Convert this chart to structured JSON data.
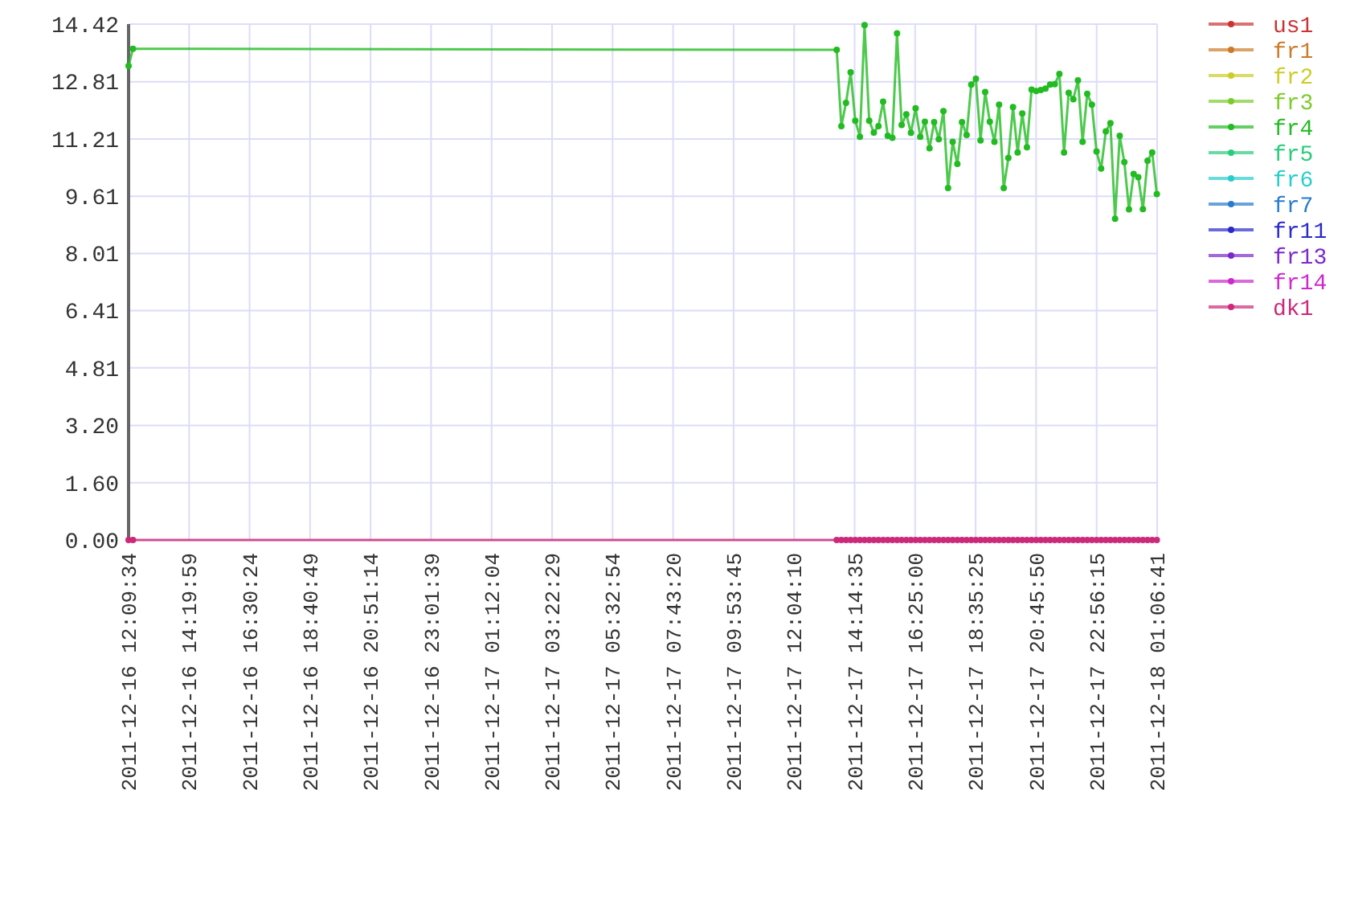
{
  "chart_data": {
    "type": "line",
    "x": [
      "2011-12-16T12:09:34",
      "2011-12-16T12:19",
      "2011-12-17T13:36",
      "2011-12-17T13:46",
      "2011-12-17T13:56",
      "2011-12-17T14:06",
      "2011-12-17T14:16",
      "2011-12-17T14:26",
      "2011-12-17T14:36",
      "2011-12-17T14:46",
      "2011-12-17T14:56",
      "2011-12-17T15:06",
      "2011-12-17T15:16",
      "2011-12-17T15:26",
      "2011-12-17T15:36",
      "2011-12-17T15:46",
      "2011-12-17T15:56",
      "2011-12-17T16:06",
      "2011-12-17T16:16",
      "2011-12-17T16:26",
      "2011-12-17T16:36",
      "2011-12-17T16:46",
      "2011-12-17T16:56",
      "2011-12-17T17:06",
      "2011-12-17T17:16",
      "2011-12-17T17:26",
      "2011-12-17T17:36",
      "2011-12-17T17:46",
      "2011-12-17T17:56",
      "2011-12-17T18:06",
      "2011-12-17T18:16",
      "2011-12-17T18:26",
      "2011-12-17T18:36",
      "2011-12-17T18:46",
      "2011-12-17T18:56",
      "2011-12-17T19:06",
      "2011-12-17T19:16",
      "2011-12-17T19:26",
      "2011-12-17T19:36",
      "2011-12-17T19:46",
      "2011-12-17T19:56",
      "2011-12-17T20:06",
      "2011-12-17T20:16",
      "2011-12-17T20:26",
      "2011-12-17T20:36",
      "2011-12-17T20:46",
      "2011-12-17T20:56",
      "2011-12-17T21:06",
      "2011-12-17T21:16",
      "2011-12-17T21:26",
      "2011-12-17T21:36",
      "2011-12-17T21:46",
      "2011-12-17T21:56",
      "2011-12-17T22:06",
      "2011-12-17T22:16",
      "2011-12-17T22:26",
      "2011-12-17T22:36",
      "2011-12-17T22:46",
      "2011-12-17T22:56",
      "2011-12-17T23:06",
      "2011-12-17T23:16",
      "2011-12-17T23:26",
      "2011-12-17T23:36",
      "2011-12-17T23:46",
      "2011-12-17T23:56",
      "2011-12-18T00:06",
      "2011-12-18T00:16",
      "2011-12-18T00:26",
      "2011-12-18T00:36",
      "2011-12-18T00:46",
      "2011-12-18T00:56",
      "2011-12-18T01:06"
    ],
    "xlim": [
      "2011-12-16T12:09:34",
      "2011-12-18T01:06:41"
    ],
    "xticks": [
      {
        "value": "2011-12-16T12:09:34",
        "label": "2011-12-16 12:09:34"
      },
      {
        "value": "2011-12-16T14:19:59",
        "label": "2011-12-16 14:19:59"
      },
      {
        "value": "2011-12-16T16:30:24",
        "label": "2011-12-16 16:30:24"
      },
      {
        "value": "2011-12-16T18:40:49",
        "label": "2011-12-16 18:40:49"
      },
      {
        "value": "2011-12-16T20:51:14",
        "label": "2011-12-16 20:51:14"
      },
      {
        "value": "2011-12-16T23:01:39",
        "label": "2011-12-16 23:01:39"
      },
      {
        "value": "2011-12-17T01:12:04",
        "label": "2011-12-17 01:12:04"
      },
      {
        "value": "2011-12-17T03:22:29",
        "label": "2011-12-17 03:22:29"
      },
      {
        "value": "2011-12-17T05:32:54",
        "label": "2011-12-17 05:32:54"
      },
      {
        "value": "2011-12-17T07:43:20",
        "label": "2011-12-17 07:43:20"
      },
      {
        "value": "2011-12-17T09:53:45",
        "label": "2011-12-17 09:53:45"
      },
      {
        "value": "2011-12-17T12:04:10",
        "label": "2011-12-17 12:04:10"
      },
      {
        "value": "2011-12-17T14:14:35",
        "label": "2011-12-17 14:14:35"
      },
      {
        "value": "2011-12-17T16:25:00",
        "label": "2011-12-17 16:25:00"
      },
      {
        "value": "2011-12-17T18:35:25",
        "label": "2011-12-17 18:35:25"
      },
      {
        "value": "2011-12-17T20:45:50",
        "label": "2011-12-17 20:45:50"
      },
      {
        "value": "2011-12-17T22:56:15",
        "label": "2011-12-17 22:56:15"
      },
      {
        "value": "2011-12-18T01:06:41",
        "label": "2011-12-18 01:06:41"
      }
    ],
    "ylim": [
      0,
      14.42
    ],
    "yticks": [
      {
        "value": 0,
        "label": "0.00"
      },
      {
        "value": 1.6,
        "label": "1.60"
      },
      {
        "value": 3.2,
        "label": "3.20"
      },
      4.81,
      6.41,
      8.01,
      9.61,
      11.21,
      12.81,
      14.42
    ],
    "grid": true,
    "legend": "right",
    "marker": "circle",
    "line_style": "solid",
    "series": [
      {
        "name": "us1",
        "color": "#cc3333",
        "values": [
          null,
          null,
          null,
          null,
          null,
          null,
          null,
          null,
          null,
          null,
          null,
          null,
          null,
          null,
          null,
          null,
          null,
          null,
          null,
          null,
          null,
          null,
          null,
          null,
          null,
          null,
          null,
          null,
          null,
          null,
          null,
          null,
          null,
          null,
          null,
          null,
          null,
          null,
          null,
          null,
          null,
          null,
          null,
          null,
          null,
          null,
          null,
          null,
          null,
          null,
          null,
          null,
          null,
          null,
          null,
          null,
          null,
          null,
          null,
          null,
          null,
          null,
          null,
          null,
          null,
          null,
          null,
          null,
          null,
          null,
          null,
          null
        ]
      },
      {
        "name": "fr1",
        "color": "#cc7a29",
        "values": [
          null,
          null,
          null,
          null,
          null,
          null,
          null,
          null,
          null,
          null,
          null,
          null,
          null,
          null,
          null,
          null,
          null,
          null,
          null,
          null,
          null,
          null,
          null,
          null,
          null,
          null,
          null,
          null,
          null,
          null,
          null,
          null,
          null,
          null,
          null,
          null,
          null,
          null,
          null,
          null,
          null,
          null,
          null,
          null,
          null,
          null,
          null,
          null,
          null,
          null,
          null,
          null,
          null,
          null,
          null,
          null,
          null,
          null,
          null,
          null,
          null,
          null,
          null,
          null,
          null,
          null,
          null,
          null,
          null,
          null,
          null,
          null
        ]
      },
      {
        "name": "fr2",
        "color": "#cccc29",
        "values": [
          null,
          null,
          null,
          null,
          null,
          null,
          null,
          null,
          null,
          null,
          null,
          null,
          null,
          null,
          null,
          null,
          null,
          null,
          null,
          null,
          null,
          null,
          null,
          null,
          null,
          null,
          null,
          null,
          null,
          null,
          null,
          null,
          null,
          null,
          null,
          null,
          null,
          null,
          null,
          null,
          null,
          null,
          null,
          null,
          null,
          null,
          null,
          null,
          null,
          null,
          null,
          null,
          null,
          null,
          null,
          null,
          null,
          null,
          null,
          null,
          null,
          null,
          null,
          null,
          null,
          null,
          null,
          null,
          null,
          null,
          null,
          null
        ]
      },
      {
        "name": "fr3",
        "color": "#7acc29",
        "values": [
          null,
          null,
          null,
          null,
          null,
          null,
          null,
          null,
          null,
          null,
          null,
          null,
          null,
          null,
          null,
          null,
          null,
          null,
          null,
          null,
          null,
          null,
          null,
          null,
          null,
          null,
          null,
          null,
          null,
          null,
          null,
          null,
          null,
          null,
          null,
          null,
          null,
          null,
          null,
          null,
          null,
          null,
          null,
          null,
          null,
          null,
          null,
          null,
          null,
          null,
          null,
          null,
          null,
          null,
          null,
          null,
          null,
          null,
          null,
          null,
          null,
          null,
          null,
          null,
          null,
          null,
          null,
          null,
          null,
          null,
          null,
          null
        ]
      },
      {
        "name": "fr4",
        "color": "#22bb22",
        "values": [
          13.25,
          13.73,
          13.7,
          11.57,
          12.22,
          13.07,
          11.72,
          11.27,
          14.39,
          11.72,
          11.39,
          11.57,
          12.25,
          11.3,
          11.24,
          14.16,
          11.6,
          11.9,
          11.38,
          12.07,
          11.27,
          11.69,
          10.95,
          11.68,
          11.2,
          11.99,
          9.84,
          11.13,
          10.51,
          11.68,
          11.32,
          12.73,
          12.89,
          11.17,
          12.52,
          11.69,
          11.13,
          12.17,
          9.84,
          10.68,
          12.1,
          10.83,
          11.92,
          10.98,
          12.59,
          12.55,
          12.58,
          12.62,
          12.73,
          12.74,
          13.03,
          10.83,
          12.5,
          12.32,
          12.85,
          11.13,
          12.47,
          12.17,
          10.86,
          10.38,
          11.42,
          11.65,
          8.98,
          11.3,
          10.56,
          9.24,
          10.23,
          10.14,
          9.25,
          10.6,
          10.83,
          9.67
        ]
      },
      {
        "name": "fr5",
        "color": "#29cc7a",
        "values": [
          null,
          null,
          null,
          null,
          null,
          null,
          null,
          null,
          null,
          null,
          null,
          null,
          null,
          null,
          null,
          null,
          null,
          null,
          null,
          null,
          null,
          null,
          null,
          null,
          null,
          null,
          null,
          null,
          null,
          null,
          null,
          null,
          null,
          null,
          null,
          null,
          null,
          null,
          null,
          null,
          null,
          null,
          null,
          null,
          null,
          null,
          null,
          null,
          null,
          null,
          null,
          null,
          null,
          null,
          null,
          null,
          null,
          null,
          null,
          null,
          null,
          null,
          null,
          null,
          null,
          null,
          null,
          null,
          null,
          null,
          null,
          null
        ]
      },
      {
        "name": "fr6",
        "color": "#29cccc",
        "values": [
          null,
          null,
          null,
          null,
          null,
          null,
          null,
          null,
          null,
          null,
          null,
          null,
          null,
          null,
          null,
          null,
          null,
          null,
          null,
          null,
          null,
          null,
          null,
          null,
          null,
          null,
          null,
          null,
          null,
          null,
          null,
          null,
          null,
          null,
          null,
          null,
          null,
          null,
          null,
          null,
          null,
          null,
          null,
          null,
          null,
          null,
          null,
          null,
          null,
          null,
          null,
          null,
          null,
          null,
          null,
          null,
          null,
          null,
          null,
          null,
          null,
          null,
          null,
          null,
          null,
          null,
          null,
          null,
          null,
          null,
          null,
          null
        ]
      },
      {
        "name": "fr7",
        "color": "#297acc",
        "values": [
          null,
          null,
          null,
          null,
          null,
          null,
          null,
          null,
          null,
          null,
          null,
          null,
          null,
          null,
          null,
          null,
          null,
          null,
          null,
          null,
          null,
          null,
          null,
          null,
          null,
          null,
          null,
          null,
          null,
          null,
          null,
          null,
          null,
          null,
          null,
          null,
          null,
          null,
          null,
          null,
          null,
          null,
          null,
          null,
          null,
          null,
          null,
          null,
          null,
          null,
          null,
          null,
          null,
          null,
          null,
          null,
          null,
          null,
          null,
          null,
          null,
          null,
          null,
          null,
          null,
          null,
          null,
          null,
          null,
          null,
          null,
          null
        ]
      },
      {
        "name": "fr11",
        "color": "#2929cc",
        "values": [
          null,
          null,
          null,
          null,
          null,
          null,
          null,
          null,
          null,
          null,
          null,
          null,
          null,
          null,
          null,
          null,
          null,
          null,
          null,
          null,
          null,
          null,
          null,
          null,
          null,
          null,
          null,
          null,
          null,
          null,
          null,
          null,
          null,
          null,
          null,
          null,
          null,
          null,
          null,
          null,
          null,
          null,
          null,
          null,
          null,
          null,
          null,
          null,
          null,
          null,
          null,
          null,
          null,
          null,
          null,
          null,
          null,
          null,
          null,
          null,
          null,
          null,
          null,
          null,
          null,
          null,
          null,
          null,
          null,
          null,
          null,
          null
        ]
      },
      {
        "name": "fr13",
        "color": "#7a29cc",
        "values": [
          null,
          null,
          null,
          null,
          null,
          null,
          null,
          null,
          null,
          null,
          null,
          null,
          null,
          null,
          null,
          null,
          null,
          null,
          null,
          null,
          null,
          null,
          null,
          null,
          null,
          null,
          null,
          null,
          null,
          null,
          null,
          null,
          null,
          null,
          null,
          null,
          null,
          null,
          null,
          null,
          null,
          null,
          null,
          null,
          null,
          null,
          null,
          null,
          null,
          null,
          null,
          null,
          null,
          null,
          null,
          null,
          null,
          null,
          null,
          null,
          null,
          null,
          null,
          null,
          null,
          null,
          null,
          null,
          null,
          null,
          null,
          null
        ]
      },
      {
        "name": "fr14",
        "color": "#cc29cc",
        "values": [
          null,
          null,
          null,
          null,
          null,
          null,
          null,
          null,
          null,
          null,
          null,
          null,
          null,
          null,
          null,
          null,
          null,
          null,
          null,
          null,
          null,
          null,
          null,
          null,
          null,
          null,
          null,
          null,
          null,
          null,
          null,
          null,
          null,
          null,
          null,
          null,
          null,
          null,
          null,
          null,
          null,
          null,
          null,
          null,
          null,
          null,
          null,
          null,
          null,
          null,
          null,
          null,
          null,
          null,
          null,
          null,
          null,
          null,
          null,
          null,
          null,
          null,
          null,
          null,
          null,
          null,
          null,
          null,
          null,
          null,
          null,
          null
        ]
      },
      {
        "name": "dk1",
        "color": "#cc297a",
        "values": [
          0,
          0,
          0,
          0,
          0,
          0,
          0,
          0,
          0,
          0,
          0,
          0,
          0,
          0,
          0,
          0,
          0,
          0,
          0,
          0,
          0,
          0,
          0,
          0,
          0,
          0,
          0,
          0,
          0,
          0,
          0,
          0,
          0,
          0,
          0,
          0,
          0,
          0,
          0,
          0,
          0,
          0,
          0,
          0,
          0,
          0,
          0,
          0,
          0,
          0,
          0,
          0,
          0,
          0,
          0,
          0,
          0,
          0,
          0,
          0,
          0,
          0,
          0,
          0,
          0,
          0,
          0,
          0,
          0,
          0,
          0,
          0
        ]
      }
    ]
  }
}
